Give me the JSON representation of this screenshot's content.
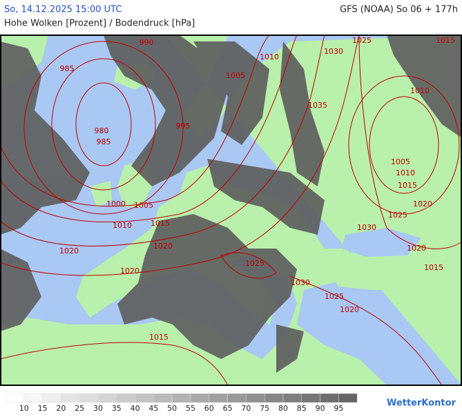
{
  "header": {
    "datetime": "So, 14.12.2025 15:00 UTC",
    "model": "GFS (NOAA) So 06 + 177h",
    "title": "Hohe Wolken [Prozent] / Bodendruck [hPa]"
  },
  "isobar_labels": [
    990,
    1025,
    1015,
    1010,
    1030,
    985,
    1005,
    1035,
    1010,
    980,
    985,
    995,
    1005,
    1010,
    1015,
    1000,
    1005,
    1020,
    1015,
    1010,
    1025,
    1030,
    1020,
    1020,
    1020,
    1025,
    1015,
    1020,
    1030,
    1025,
    1020,
    1015
  ],
  "legend": {
    "labels": [
      10,
      15,
      20,
      25,
      30,
      35,
      40,
      45,
      50,
      55,
      60,
      65,
      70,
      75,
      80,
      85,
      90,
      95
    ]
  },
  "logo": "WetterKontor"
}
